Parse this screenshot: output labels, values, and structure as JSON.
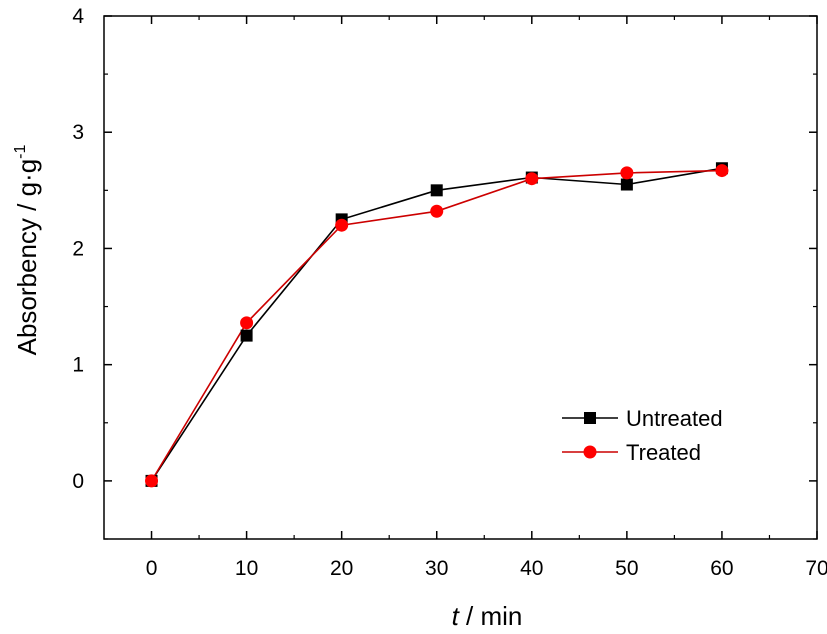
{
  "chart_data": {
    "type": "line",
    "title": "",
    "x": [
      0,
      10,
      20,
      30,
      40,
      50,
      60
    ],
    "xlim": [
      -5,
      70
    ],
    "ylim": [
      -0.5,
      4
    ],
    "xticks": [
      "0",
      "10",
      "20",
      "30",
      "40",
      "50",
      "60",
      "70"
    ],
    "yticks": [
      "0",
      "1",
      "2",
      "3",
      "4"
    ],
    "xlabel": {
      "italic": "t",
      "rest": " / min"
    },
    "ylabel": {
      "base": "Absorbency / g·g",
      "sup": "-1"
    },
    "grid": false,
    "legend_position": "bottom-right",
    "series": [
      {
        "name": "Untreated",
        "color": "#000000",
        "marker": "square",
        "values": [
          0,
          1.25,
          2.25,
          2.5,
          2.61,
          2.55,
          2.69
        ]
      },
      {
        "name": "Treated",
        "color": "#ff0000",
        "line_color": "#cc0000",
        "marker": "circle",
        "values": [
          0,
          1.36,
          2.2,
          2.32,
          2.6,
          2.65,
          2.67
        ]
      }
    ]
  }
}
